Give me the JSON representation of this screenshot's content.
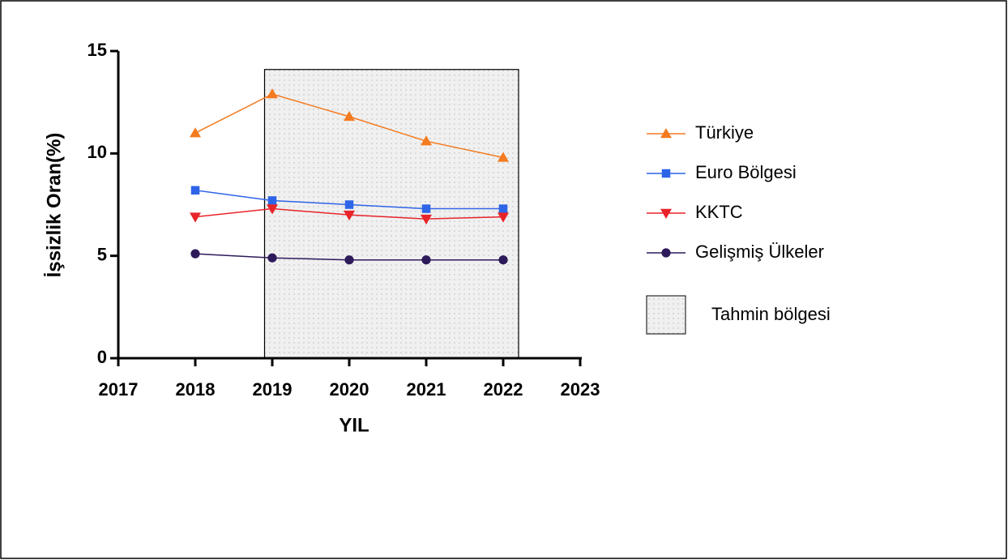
{
  "chart_data": {
    "type": "line",
    "xlabel": "YIL",
    "ylabel": "İşsizlik Oran(%)",
    "x": [
      2018,
      2019,
      2020,
      2021,
      2022
    ],
    "series": [
      {
        "name": "Türkiye",
        "color": "#f47b20",
        "marker": "triangle-up",
        "values": [
          11.0,
          12.9,
          11.8,
          10.6,
          9.8
        ]
      },
      {
        "name": "Euro Bölgesi",
        "color": "#2e64e8",
        "marker": "square",
        "values": [
          8.2,
          7.7,
          7.5,
          7.3,
          7.3
        ]
      },
      {
        "name": "KKTC",
        "color": "#e8242a",
        "marker": "triangle-down",
        "values": [
          6.9,
          7.3,
          7.0,
          6.8,
          6.9
        ]
      },
      {
        "name": "Gelişmiş Ülkeler",
        "color": "#2d1a5a",
        "marker": "circle",
        "values": [
          5.1,
          4.9,
          4.8,
          4.8,
          4.8
        ]
      }
    ],
    "region": {
      "name": "Tahmin bölgesi",
      "x": [
        2018.9,
        2022.2
      ],
      "y": [
        0,
        14.1
      ]
    },
    "xlim": [
      2017,
      2023
    ],
    "xticks": [
      2017,
      2018,
      2019,
      2020,
      2021,
      2022,
      2023
    ],
    "ylim": [
      0,
      15
    ],
    "yticks": [
      0,
      5,
      10,
      15
    ],
    "legend": "right"
  }
}
